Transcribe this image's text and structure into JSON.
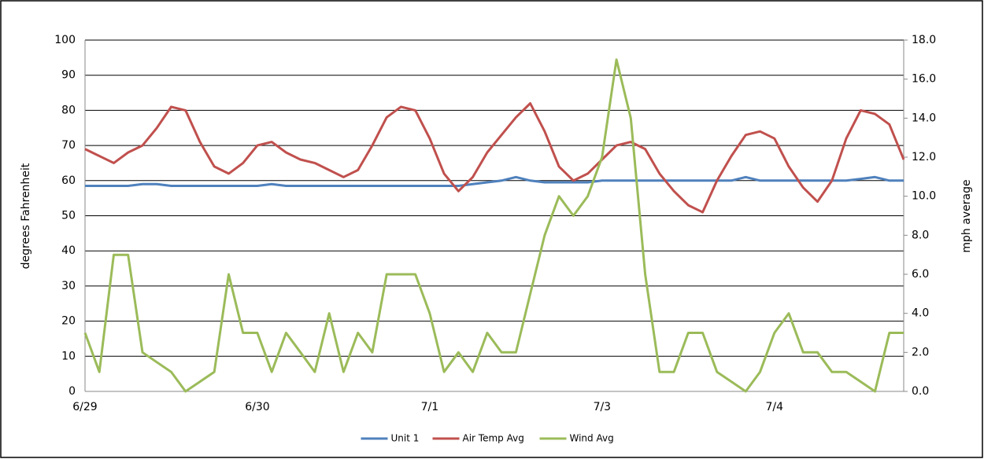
{
  "chart_data": {
    "type": "line",
    "y_label": "degrees Fahrenheit",
    "y2_label": "mph average",
    "categories": [
      "6/29",
      null,
      null,
      null,
      null,
      null,
      null,
      null,
      null,
      null,
      null,
      null,
      "6/30",
      null,
      null,
      null,
      null,
      null,
      null,
      null,
      null,
      null,
      null,
      null,
      "7/1",
      null,
      null,
      null,
      null,
      null,
      null,
      null,
      null,
      null,
      null,
      null,
      "7/3",
      null,
      null,
      null,
      null,
      null,
      null,
      null,
      null,
      null,
      null,
      null,
      "7/4",
      null,
      null,
      null,
      null,
      null,
      null,
      null,
      null,
      null
    ],
    "ylim": [
      0,
      100
    ],
    "yticks": [
      0,
      10,
      20,
      30,
      40,
      50,
      60,
      70,
      80,
      90,
      100
    ],
    "y2lim": [
      0,
      18
    ],
    "y2ticks": [
      {
        "value": 0,
        "label": "0.0"
      },
      {
        "value": 2,
        "label": "2.0"
      },
      {
        "value": 4,
        "label": "4.0"
      },
      {
        "value": 6,
        "label": "6.0"
      },
      {
        "value": 8,
        "label": "8.0"
      },
      {
        "value": 10,
        "label": "10.0"
      },
      {
        "value": 12,
        "label": "12.0"
      },
      {
        "value": 14,
        "label": "14.0"
      },
      {
        "value": 16,
        "label": "16.0"
      },
      {
        "value": 18,
        "label": "18.0"
      }
    ],
    "grid": true,
    "legend": "bottom",
    "series": [
      {
        "name": "Unit 1",
        "color": "#4f81bd",
        "values": [
          58.5,
          58.5,
          58.5,
          58.5,
          59,
          59,
          58.5,
          58.5,
          58.5,
          58.5,
          58.5,
          58.5,
          58.5,
          59,
          58.5,
          58.5,
          58.5,
          58.5,
          58.5,
          58.5,
          58.5,
          58.5,
          58.5,
          58.5,
          58.5,
          58.5,
          58.5,
          59,
          59.5,
          60,
          61,
          60,
          59.5,
          59.5,
          59.5,
          59.5,
          60,
          60,
          60,
          60,
          60,
          60,
          60,
          60,
          60,
          60,
          61,
          60,
          60,
          60,
          60,
          60,
          60,
          60,
          60.5,
          61,
          60,
          60
        ]
      },
      {
        "name": "Air Temp Avg",
        "color": "#c0504d",
        "values": [
          69,
          67,
          65,
          68,
          70,
          75,
          81,
          80,
          71,
          64,
          62,
          65,
          70,
          71,
          68,
          66,
          65,
          63,
          61,
          63,
          70,
          78,
          81,
          80,
          72,
          62,
          57,
          61,
          68,
          73,
          78,
          82,
          74,
          64,
          60,
          62,
          66,
          70,
          71,
          69,
          62,
          57,
          53,
          51,
          60,
          67,
          73,
          74,
          72,
          64,
          58,
          54,
          60,
          72,
          80,
          79,
          76,
          66
        ]
      },
      {
        "name": "Wind Avg",
        "color": "#9bbb59",
        "axis": "y2",
        "values": [
          3,
          1,
          7,
          7,
          2,
          1.5,
          1,
          0,
          0.5,
          1,
          6,
          3,
          3,
          1,
          3,
          2,
          1,
          4,
          1,
          3,
          2,
          6,
          6,
          6,
          4,
          1,
          2,
          1,
          3,
          2,
          2,
          5,
          8,
          10,
          9,
          10,
          12,
          17,
          14,
          6,
          1,
          1,
          3,
          3,
          1,
          0.5,
          0,
          1,
          3,
          4,
          2,
          2,
          1,
          1,
          0.5,
          0,
          3,
          3
        ]
      }
    ]
  }
}
